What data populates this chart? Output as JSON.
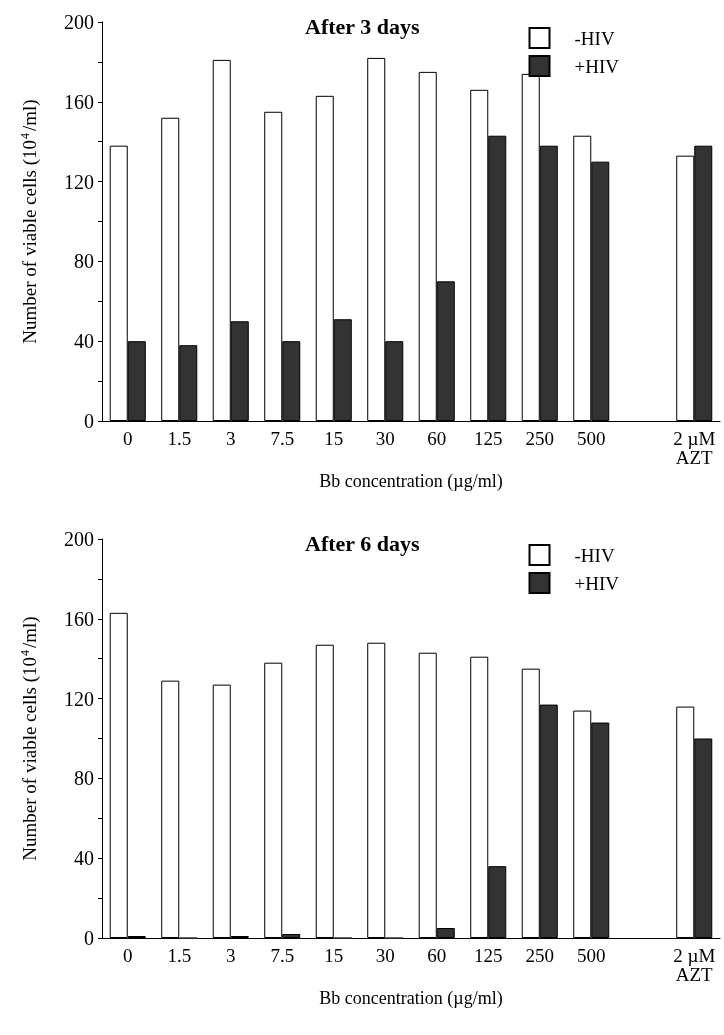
{
  "chart_data": [
    {
      "type": "bar",
      "title": "After 3 days",
      "xlabel": "Bb concentration (µg/ml)",
      "ylabel": "Number of viable cells (10$^{4}$/ml)",
      "categories": [
        "0",
        "1.5",
        "3",
        "7.5",
        "15",
        "30",
        "60",
        "125",
        "250",
        "500",
        null,
        "2 µM\nAZT"
      ],
      "series": [
        {
          "name": "-HIV",
          "color": "#ffffff",
          "values": [
            138,
            152,
            181,
            155,
            163,
            182,
            175,
            166,
            174,
            143,
            null,
            133
          ]
        },
        {
          "name": "+HIV",
          "color": "#333333",
          "values": [
            40,
            38,
            50,
            40,
            51,
            40,
            70,
            143,
            138,
            130,
            null,
            138
          ]
        }
      ],
      "ylim": [
        0,
        200
      ],
      "yticks": [
        0,
        {
          "value": 20,
          "label": null
        },
        40,
        {
          "value": 60,
          "label": null
        },
        80,
        {
          "value": 100,
          "label": null
        },
        120,
        {
          "value": 140,
          "label": null
        },
        160,
        {
          "value": 180,
          "label": null
        },
        200
      ],
      "grid": false,
      "legend": "top right"
    },
    {
      "type": "bar",
      "title": "After 6 days",
      "xlabel": "Bb concentration (µg/ml)",
      "ylabel": "Number of viable cells (10$^{4}$/ml)",
      "categories": [
        "0",
        "1.5",
        "3",
        "7.5",
        "15",
        "30",
        "60",
        "125",
        "250",
        "500",
        null,
        "2 µM\nAZT"
      ],
      "series": [
        {
          "name": "-HIV",
          "color": "#ffffff",
          "values": [
            163,
            129,
            127,
            138,
            147,
            148,
            143,
            141,
            135,
            114,
            null,
            116
          ]
        },
        {
          "name": "+HIV",
          "color": "#333333",
          "values": [
            1,
            0,
            1,
            2,
            0,
            0,
            5,
            36,
            117,
            108,
            null,
            100
          ]
        }
      ],
      "ylim": [
        0,
        200
      ],
      "yticks": [
        0,
        {
          "value": 20,
          "label": null
        },
        40,
        {
          "value": 60,
          "label": null
        },
        80,
        {
          "value": 100,
          "label": null
        },
        120,
        {
          "value": 140,
          "label": null
        },
        160,
        {
          "value": 180,
          "label": null
        },
        200
      ],
      "grid": false,
      "legend": "top right"
    }
  ]
}
